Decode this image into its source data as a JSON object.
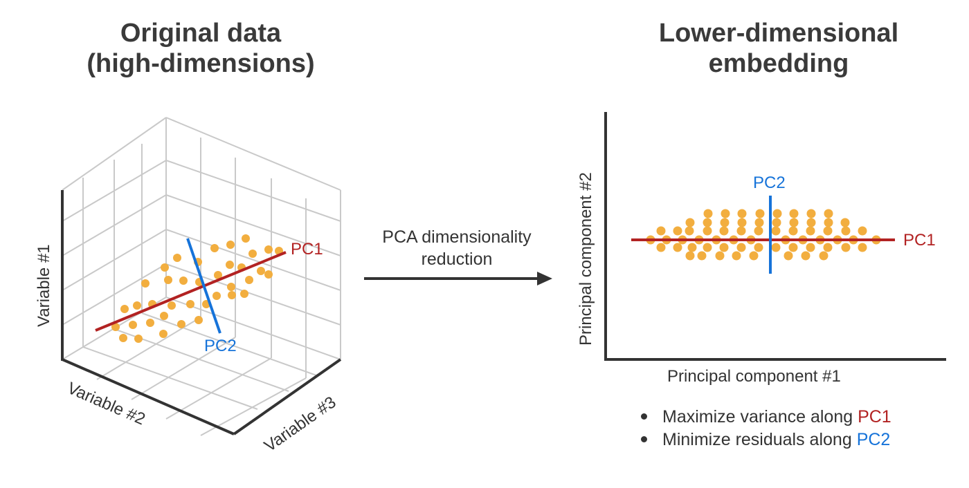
{
  "colors": {
    "point": "#F2AE3F",
    "pc1": "#B22222",
    "pc2": "#1673D9",
    "axis": "#333333",
    "grid": "#C9C9C9"
  },
  "left_panel": {
    "title_line1": "Original data",
    "title_line2": "(high-dimensions)",
    "axis_labels": {
      "variable1": "Variable #1",
      "variable2": "Variable #2",
      "variable3": "Variable #3"
    },
    "pc1_label": "PC1",
    "pc2_label": "PC2"
  },
  "arrow": {
    "label_line1": "PCA dimensionality",
    "label_line2": "reduction",
    "icon": "arrow-right-icon"
  },
  "right_panel": {
    "title_line1": "Lower-dimensional",
    "title_line2": "embedding",
    "x_axis_label": "Principal component #1",
    "y_axis_label": "Principal component #2",
    "pc1_label": "PC1",
    "pc2_label": "PC2"
  },
  "bullets": [
    {
      "text": "Maximize variance along",
      "pc": "PC1"
    },
    {
      "text": "Minimize residuals along",
      "pc": "PC2"
    }
  ]
}
